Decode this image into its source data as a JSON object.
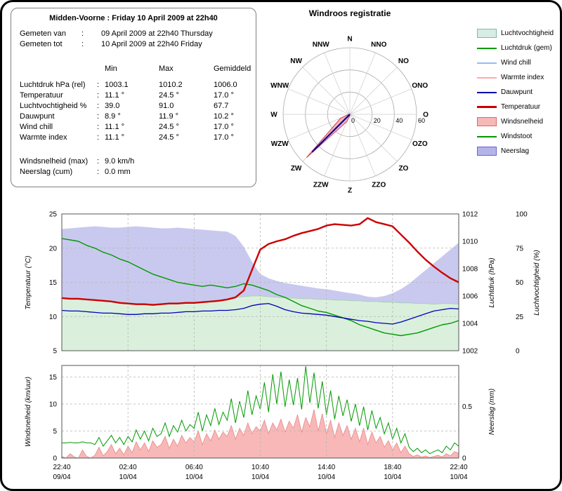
{
  "panel": {
    "title": "Midden-Voorne : Friday 10 April 2009 at 22h40",
    "measured_from_label": "Gemeten van",
    "measured_from": "09 April 2009 at 22h40 Thursday",
    "measured_to_label": "Gemeten tot",
    "measured_to": "10 April 2009 at 22h40 Friday",
    "columns": [
      "Min",
      "Max",
      "Gemiddeld"
    ],
    "rows": [
      {
        "label": "Luchtdruk hPa (rel)",
        "min": "1003.1",
        "max": "1010.2",
        "avg": "1006.0"
      },
      {
        "label": "Temperatuur",
        "min": "11.1 °",
        "max": "24.5 °",
        "avg": "17.0 °"
      },
      {
        "label": "Luchtvochtigheid %",
        "min": "39.0",
        "max": "91.0",
        "avg": "67.7"
      },
      {
        "label": "Dauwpunt",
        "min": "8.9 °",
        "max": "11.9 °",
        "avg": "10.2 °"
      },
      {
        "label": "Wind chill",
        "min": "11.1 °",
        "max": "24.5 °",
        "avg": "17.0 °"
      },
      {
        "label": "Warmte index",
        "min": "11.1 °",
        "max": "24.5 °",
        "avg": "17.0 °"
      }
    ],
    "extra_rows": [
      {
        "label": "Windsnelheid (max)",
        "value": "9.0 km/h"
      },
      {
        "label": "Neerslag (cum)",
        "value": "0.0 mm"
      }
    ]
  },
  "legend": {
    "items": [
      {
        "label": "Luchtvochtigheid",
        "type": "area",
        "fill": "#d6ece4",
        "border": "#7fb8a8"
      },
      {
        "label": "Luchtdruk (gem)",
        "type": "line",
        "color": "#009900"
      },
      {
        "label": "Wind chill",
        "type": "line",
        "color": "#99bbee"
      },
      {
        "label": "Warmte index",
        "type": "line",
        "color": "#ffaaaa"
      },
      {
        "label": "Dauwpunt",
        "type": "line",
        "color": "#0000aa"
      },
      {
        "label": "Temperatuur",
        "type": "line-thick",
        "color": "#cc0000"
      },
      {
        "label": "Windsnelheid",
        "type": "area",
        "fill": "#f8b8b8",
        "border": "#dd6666"
      },
      {
        "label": "Windstoot",
        "type": "line",
        "color": "#009900"
      },
      {
        "label": "Neerslag",
        "type": "area",
        "fill": "#b4b4ea",
        "border": "#6666cc"
      }
    ]
  },
  "chart_data": [
    {
      "type": "windrose",
      "title": "Windroos registratie",
      "directions": [
        "N",
        "NNO",
        "NO",
        "ONO",
        "O",
        "OZO",
        "ZO",
        "ZZO",
        "Z",
        "ZZW",
        "ZW",
        "WZW",
        "W",
        "WNW",
        "NW",
        "NNW"
      ],
      "rings": [
        20,
        40,
        60
      ],
      "radial_ticks": [
        0,
        20,
        40,
        60
      ],
      "max_radius": 60,
      "wind_frequency": [
        0,
        0,
        0,
        0,
        0,
        0,
        0,
        0,
        1,
        7,
        55,
        9,
        1,
        0,
        0,
        0
      ],
      "avg_direction": {
        "direction": "ZW",
        "value": 48
      },
      "fill_color": "#f4a2a2",
      "petal_stroke": "#cc4444",
      "line_color": "#0000aa"
    },
    {
      "type": "line",
      "title": "Temperatuur / Luchtdruk / Dauwpunt / Luchtvochtigheid over 24 uur",
      "x_step_hours": 0.5,
      "axes": {
        "left": {
          "label": "Temperatuur (°C)",
          "ticks": [
            5,
            10,
            15,
            20,
            25
          ],
          "range": [
            5,
            25
          ]
        },
        "pressure": {
          "label": "Luchtdruk (hPa)",
          "ticks": [
            1002,
            1004,
            1006,
            1008,
            1010,
            1012
          ],
          "range": [
            1002,
            1012
          ]
        },
        "humidity": {
          "label": "Luchtvochtigheid (%)",
          "ticks": [
            0,
            25,
            50,
            75,
            100
          ],
          "range": [
            0,
            100
          ]
        }
      },
      "series": {
        "temperature": [
          12.7,
          12.6,
          12.6,
          12.5,
          12.4,
          12.3,
          12.2,
          12.0,
          11.9,
          11.8,
          11.8,
          11.7,
          11.8,
          11.9,
          11.9,
          12.0,
          12.0,
          12.1,
          12.2,
          12.3,
          12.5,
          12.8,
          13.8,
          16.8,
          19.8,
          20.6,
          21.0,
          21.3,
          21.8,
          22.2,
          22.5,
          22.8,
          23.3,
          23.5,
          23.4,
          23.3,
          23.5,
          24.4,
          23.8,
          23.5,
          23.2,
          22.0,
          20.8,
          19.5,
          18.3,
          17.3,
          16.4,
          15.6,
          15.0
        ],
        "pressure": [
          1010.2,
          1010.1,
          1010.0,
          1009.7,
          1009.5,
          1009.2,
          1009.0,
          1008.7,
          1008.5,
          1008.2,
          1007.9,
          1007.6,
          1007.4,
          1007.2,
          1007.0,
          1006.9,
          1006.8,
          1006.7,
          1006.8,
          1006.7,
          1006.6,
          1006.7,
          1006.9,
          1006.8,
          1006.6,
          1006.4,
          1006.1,
          1005.9,
          1005.6,
          1005.3,
          1005.1,
          1004.9,
          1004.8,
          1004.6,
          1004.4,
          1004.2,
          1003.9,
          1003.7,
          1003.5,
          1003.3,
          1003.2,
          1003.1,
          1003.2,
          1003.3,
          1003.5,
          1003.7,
          1003.9,
          1004.0,
          1004.2
        ],
        "dewpoint": [
          10.9,
          10.8,
          10.8,
          10.7,
          10.6,
          10.5,
          10.5,
          10.4,
          10.3,
          10.3,
          10.4,
          10.4,
          10.5,
          10.5,
          10.6,
          10.7,
          10.7,
          10.8,
          10.8,
          10.9,
          10.9,
          11.0,
          11.2,
          11.6,
          11.8,
          11.9,
          11.5,
          11.0,
          10.7,
          10.5,
          10.4,
          10.3,
          10.2,
          10.0,
          9.8,
          9.6,
          9.4,
          9.3,
          9.1,
          9.0,
          8.9,
          9.2,
          9.6,
          10.0,
          10.4,
          10.8,
          11.0,
          11.2,
          11.1
        ],
        "humidity": [
          89,
          89.5,
          90,
          90.5,
          91,
          90.5,
          90,
          90,
          90.5,
          91,
          90.5,
          90,
          89.5,
          89.5,
          90,
          89.5,
          89,
          88.5,
          88,
          87.5,
          87,
          84,
          76,
          65,
          56,
          53,
          51,
          49.5,
          48.5,
          47.5,
          46.5,
          45.5,
          45,
          44,
          43,
          42,
          41,
          39.5,
          39,
          40,
          42,
          45,
          49,
          54,
          59,
          64,
          69,
          74,
          79
        ],
        "green_band": [
          12.7,
          12.6,
          12.6,
          12.5,
          12.4,
          12.3,
          12.2,
          12.1,
          12.0,
          11.9,
          11.9,
          11.8,
          11.9,
          12.0,
          12.0,
          12.1,
          12.1,
          12.2,
          12.3,
          12.4,
          12.5,
          12.8,
          12.9,
          13.0,
          13.0,
          12.9,
          12.8,
          12.7,
          12.7,
          12.6,
          12.6,
          12.5,
          12.5,
          12.4,
          12.4,
          12.3,
          12.3,
          12.2,
          12.2,
          12.1,
          12.1,
          12.0,
          12.0,
          11.9,
          11.9,
          11.8,
          11.9,
          11.9,
          11.8
        ]
      },
      "colors": {
        "humidity_fill": "#c9c9ef",
        "band_fill": "#daf0dc",
        "band_stroke": "#9ed4a8",
        "pressure": "#009900",
        "dewpoint": "#0000bb",
        "temperature": "#cc0000"
      }
    },
    {
      "type": "area",
      "title": "Windsnelheid / Windstoot / Neerslag over 24 uur",
      "x_step_hours": 0.25,
      "axes": {
        "left": {
          "label": "Windsnelheid (km/uur)",
          "ticks": [
            0,
            5,
            10,
            15
          ],
          "range": [
            0,
            17.2
          ]
        },
        "rain": {
          "label": "Neerslag (mm)",
          "ticks": [
            0,
            0.5
          ],
          "range": [
            0,
            0.9
          ]
        }
      },
      "series": {
        "windsnelheid": [
          0.3,
          0,
          0.8,
          0.2,
          0,
          1.5,
          0.3,
          0,
          0.5,
          2,
          0.4,
          1.2,
          2.5,
          0.8,
          1.8,
          0.6,
          2.2,
          1,
          3,
          1.5,
          2.8,
          1.2,
          3.2,
          2,
          2.5,
          4,
          1.8,
          3.5,
          2.2,
          4.2,
          2.8,
          3.8,
          3,
          5,
          2.5,
          4.5,
          3.2,
          5.2,
          3.5,
          4.8,
          4,
          6,
          3.5,
          5.5,
          4.2,
          6.5,
          4.5,
          5.8,
          5,
          7,
          4.5,
          6.5,
          5.2,
          7.2,
          4.8,
          6.8,
          5.5,
          8,
          4.8,
          7.5,
          5.8,
          9,
          5,
          8.2,
          4.5,
          7,
          3.8,
          6.5,
          4.2,
          6,
          3.5,
          5.5,
          3,
          5.5,
          2.5,
          4.8,
          2.8,
          4,
          2,
          3.2,
          1.5,
          2.8,
          1,
          2.2,
          0.8,
          0.3,
          0.6,
          0.2,
          0.4,
          0.1,
          0.3,
          0.5,
          0.2,
          0.8,
          0.4,
          1.2,
          0.9
        ],
        "windstoot": [
          2.8,
          2.8,
          2.9,
          2.8,
          2.8,
          3.0,
          2.8,
          2.8,
          2.5,
          3.8,
          2.2,
          3.2,
          4.2,
          2.8,
          3.8,
          2.5,
          4,
          3,
          5.2,
          3.5,
          5,
          3.2,
          5.5,
          4,
          4.5,
          6.5,
          4,
          6,
          4.8,
          7,
          5,
          6.2,
          5.5,
          8.5,
          5,
          8,
          6,
          9.2,
          6.2,
          8.5,
          7,
          11,
          6.5,
          10.5,
          7.5,
          12.5,
          8,
          11.5,
          9,
          14,
          8.5,
          15.5,
          10,
          16,
          9.5,
          14.5,
          9.8,
          14.8,
          9,
          17,
          10.2,
          15.8,
          9.2,
          14.2,
          8,
          12.5,
          7.2,
          11.5,
          7.8,
          10.8,
          6.8,
          10,
          6,
          9.5,
          5.2,
          8.8,
          5.5,
          7.5,
          4.5,
          6.5,
          3.5,
          5.5,
          2.8,
          4.5,
          2,
          1.2,
          1.8,
          1,
          1.5,
          0.8,
          1.2,
          1.5,
          1,
          2.2,
          1.5,
          2.8,
          2.2
        ]
      },
      "colors": {
        "wind_fill": "#f8b8b8",
        "wind_stroke": "#e88888",
        "gust": "#009900"
      },
      "x_ticks": [
        {
          "time": "22:40",
          "date": "09/04"
        },
        {
          "time": "02:40",
          "date": "10/04"
        },
        {
          "time": "06:40",
          "date": "10/04"
        },
        {
          "time": "10:40",
          "date": "10/04"
        },
        {
          "time": "14:40",
          "date": "10/04"
        },
        {
          "time": "18:40",
          "date": "10/04"
        },
        {
          "time": "22:40",
          "date": "10/04"
        }
      ]
    }
  ]
}
